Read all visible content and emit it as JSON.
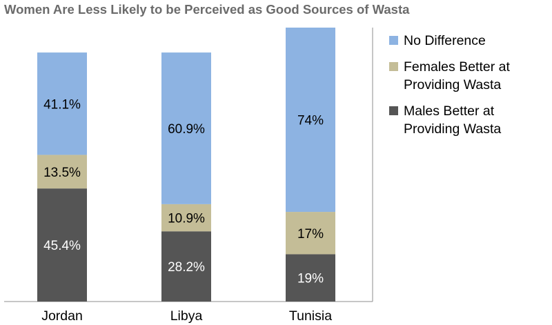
{
  "title": "Women Are Less Likely to be Perceived as Good Sources of Wasta",
  "chart_data": {
    "type": "bar",
    "stacked": true,
    "categories": [
      "Jordan",
      "Libya",
      "Tunisia"
    ],
    "series": [
      {
        "name": "Males Better at Providing Wasta",
        "values": [
          45.4,
          28.2,
          19
        ],
        "labels": [
          "45.4%",
          "28.2%",
          "19%"
        ],
        "color": "#555555"
      },
      {
        "name": "Females Better at Providing Wasta",
        "values": [
          13.5,
          10.9,
          17
        ],
        "labels": [
          "13.5%",
          "10.9%",
          "17%"
        ],
        "color": "#c4bd97"
      },
      {
        "name": "No Difference",
        "values": [
          41.1,
          60.9,
          74
        ],
        "labels": [
          "41.1%",
          "60.9%",
          "74%"
        ],
        "color": "#8db3e2"
      }
    ],
    "legend_order": [
      "No Difference",
      "Females Better at Providing Wasta",
      "Males Better at Providing Wasta"
    ],
    "legend_position": "right",
    "ylim": [
      0,
      110
    ],
    "grid": false
  }
}
